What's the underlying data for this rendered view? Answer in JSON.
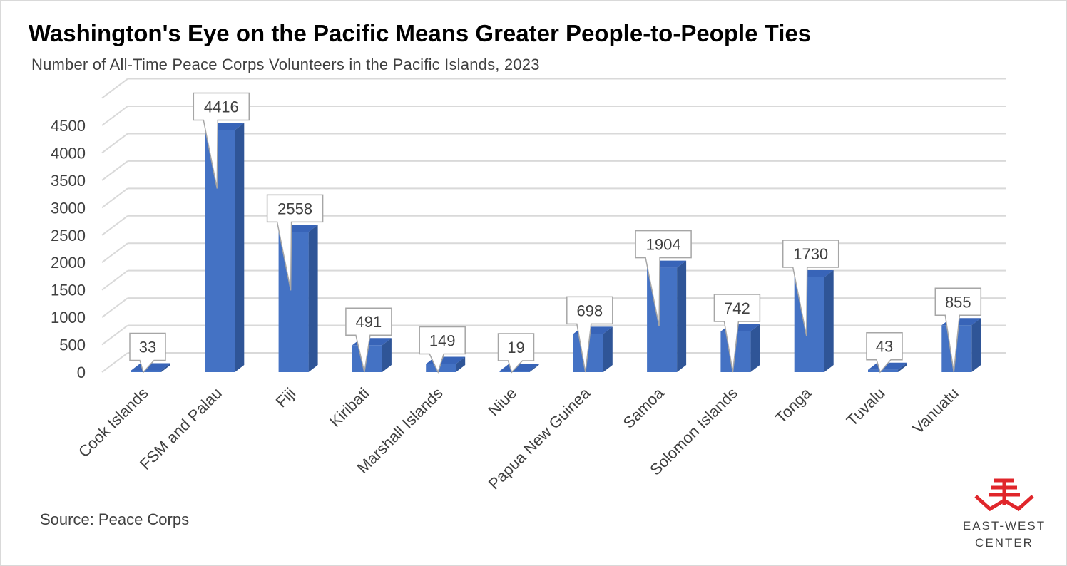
{
  "title": "Washington's Eye on the Pacific Means Greater People-to-People Ties",
  "subtitle": "Number of All-Time Peace Corps Volunteers in the Pacific Islands, 2023",
  "source": "Source: Peace Corps",
  "logo": {
    "line1": "EAST-WEST",
    "line2": "CENTER",
    "color": "#e0262b"
  },
  "colors": {
    "bar_front": "#4472c4",
    "bar_side": "#2f5597",
    "bar_top": "#3864b8",
    "grid": "#d9d9d9",
    "axis_text": "#404040"
  },
  "chart_data": {
    "type": "bar",
    "categories": [
      "Cook Islands",
      "FSM and Palau",
      "Fiji",
      "Kiribati",
      "Marshall Islands",
      "Niue",
      "Papua New Guinea",
      "Samoa",
      "Solomon Islands",
      "Tonga",
      "Tuvalu",
      "Vanuatu"
    ],
    "values": [
      33,
      4416,
      2558,
      491,
      149,
      19,
      698,
      1904,
      742,
      1730,
      43,
      855
    ],
    "data_labels": [
      "33",
      "4416",
      "2558",
      "491",
      "149",
      "19",
      "698",
      "1904",
      "742",
      "1730",
      "43",
      "855"
    ],
    "y_ticks": [
      "0",
      "500",
      "1000",
      "1500",
      "2000",
      "2500",
      "3000",
      "3500",
      "4000",
      "4500"
    ],
    "ylim": [
      0,
      4500
    ],
    "style": "3d-column",
    "grid": true,
    "legend": "none"
  }
}
